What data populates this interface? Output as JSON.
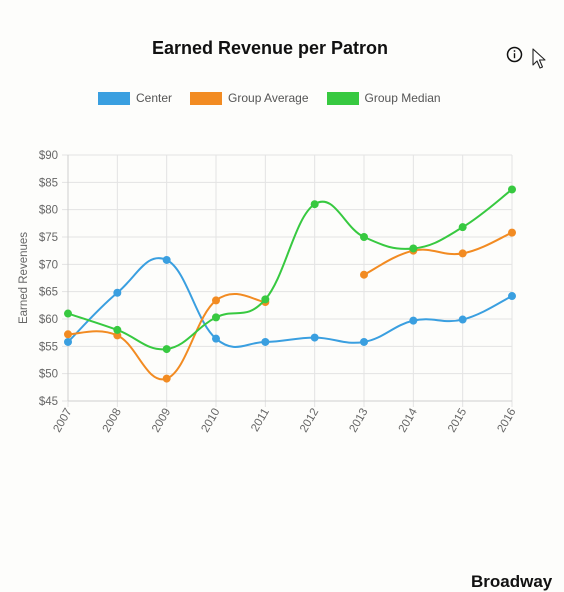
{
  "footer": {
    "text": "Broadway"
  },
  "icons": {
    "info": "info-circle-icon",
    "cursor": "mouse-pointer-icon"
  },
  "chart_data": {
    "type": "line",
    "title": "Earned Revenue per Patron",
    "xlabel": "",
    "ylabel": "Earned Revenues",
    "categories": [
      "2007",
      "2008",
      "2009",
      "2010",
      "2011",
      "2012",
      "2013",
      "2014",
      "2015",
      "2016"
    ],
    "ylim": [
      45,
      90
    ],
    "yticks": [
      45,
      50,
      55,
      60,
      65,
      70,
      75,
      80,
      85,
      90
    ],
    "ytick_labels": [
      "$45",
      "$50",
      "$55",
      "$60",
      "$65",
      "$70",
      "$75",
      "$80",
      "$85",
      "$90"
    ],
    "grid": true,
    "legend_position": "top",
    "series": [
      {
        "name": "Center",
        "color": "#3a9fe0",
        "values": [
          55.8,
          64.8,
          70.8,
          56.4,
          55.8,
          56.6,
          55.8,
          59.7,
          59.9,
          64.2
        ]
      },
      {
        "name": "Group Average",
        "color": "#f28b22",
        "values": [
          57.2,
          57.0,
          49.1,
          63.4,
          63.1,
          null,
          68.1,
          72.5,
          72.0,
          75.8
        ]
      },
      {
        "name": "Group Median",
        "color": "#37c940",
        "values": [
          61.0,
          58.0,
          54.5,
          60.3,
          63.6,
          81.0,
          75.0,
          72.9,
          76.8,
          83.7
        ]
      }
    ]
  }
}
